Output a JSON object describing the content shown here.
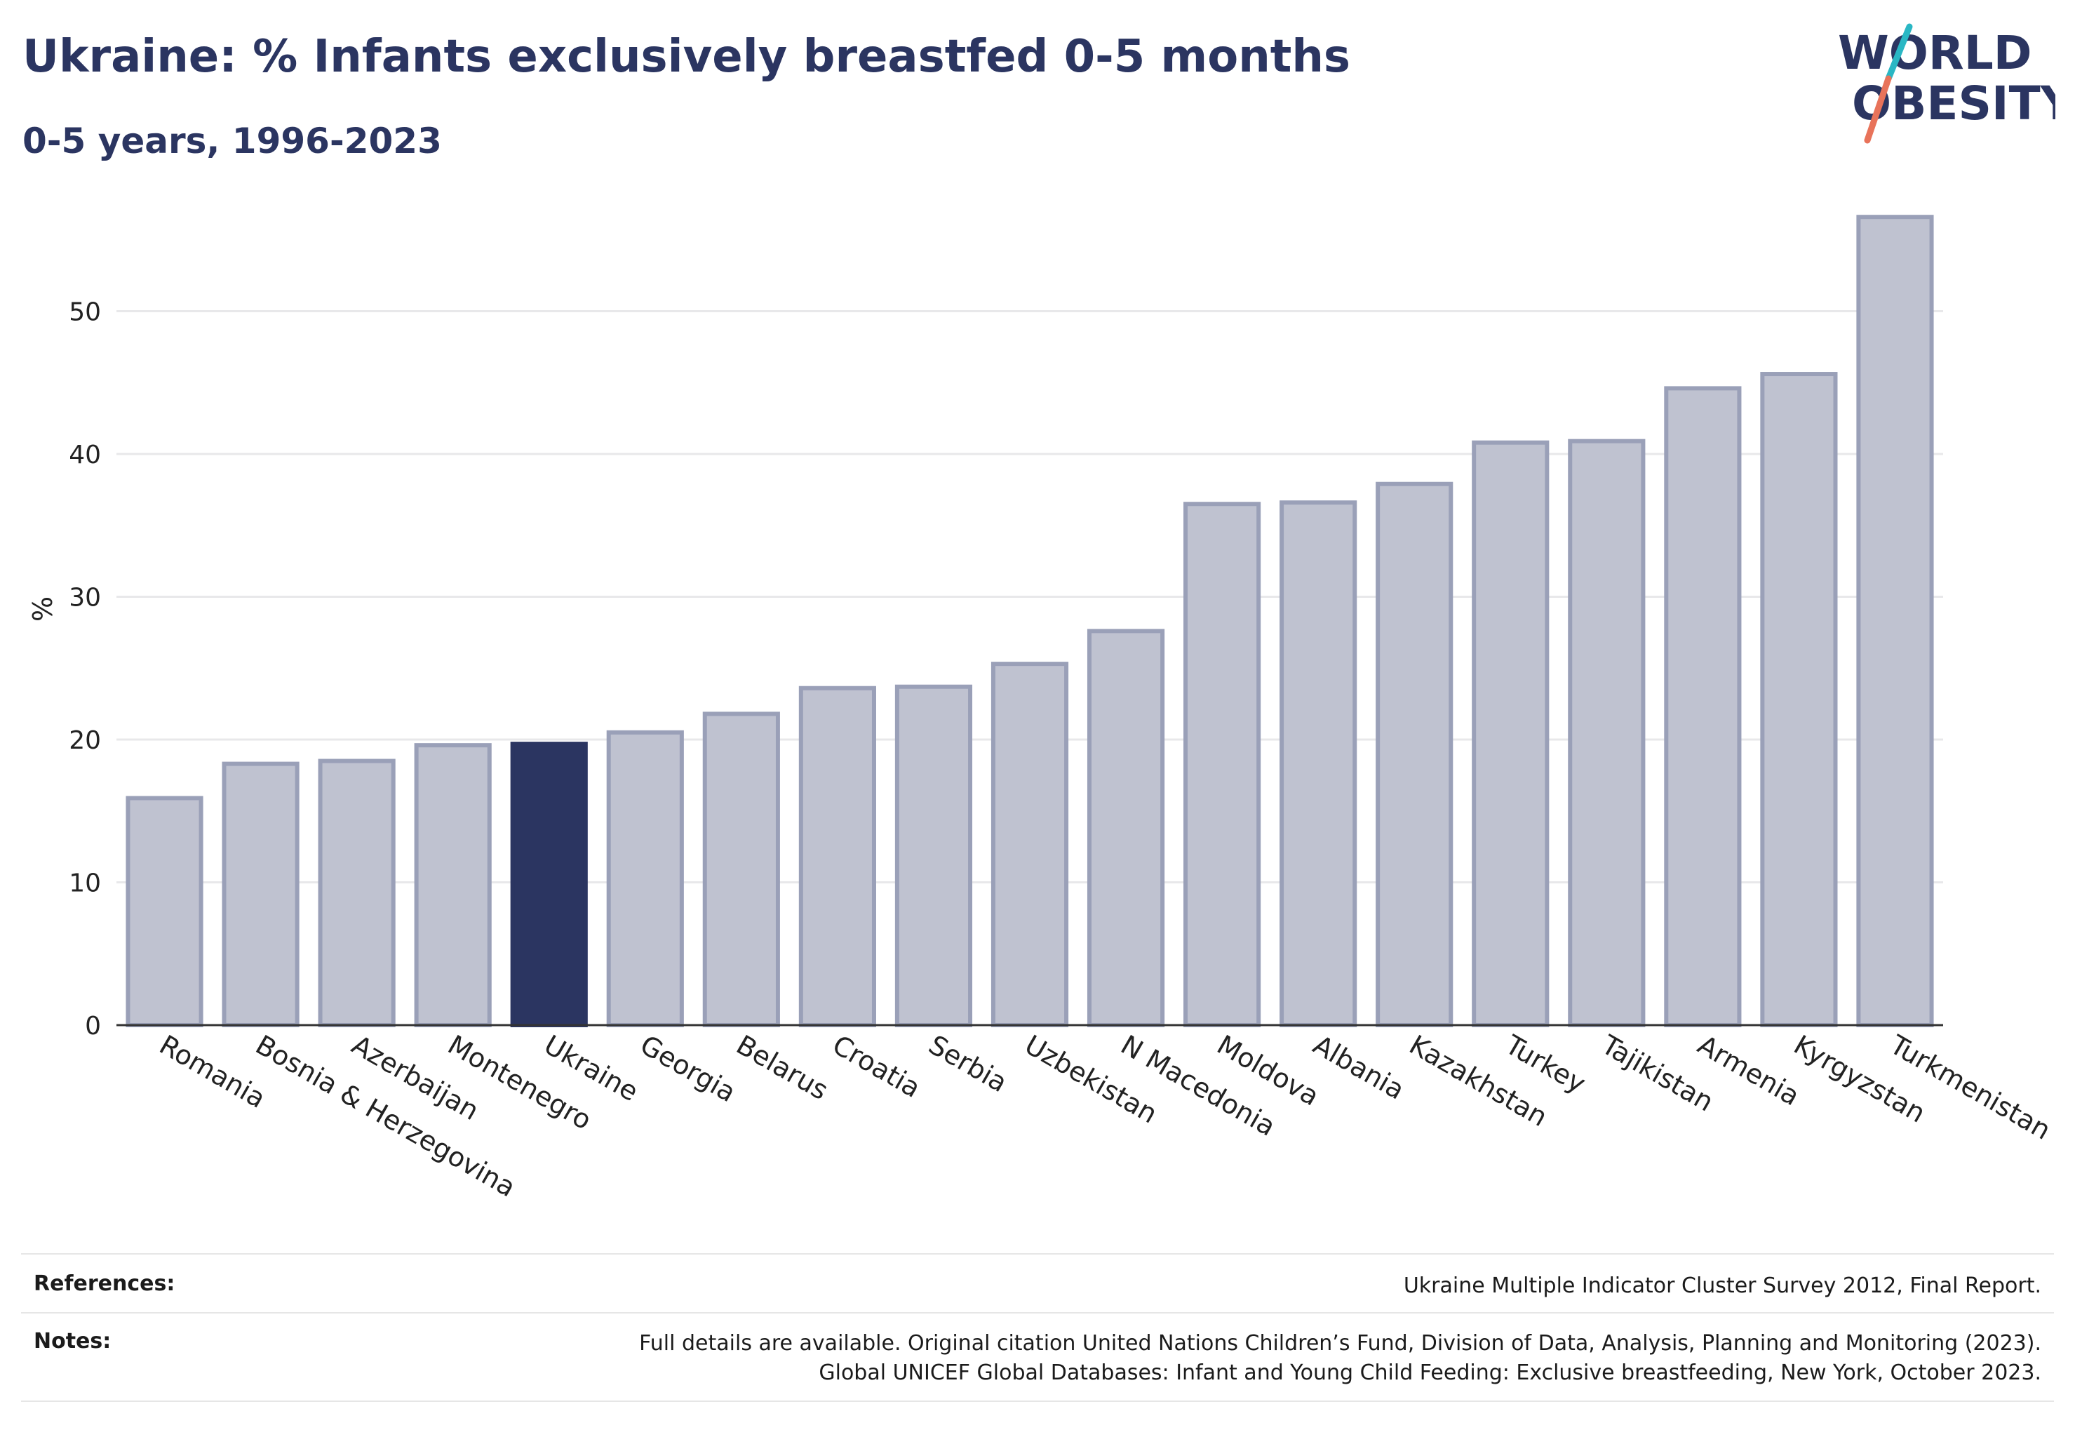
{
  "header": {
    "title": "Ukraine: % Infants exclusively breastfed 0-5 months",
    "subtitle": "0-5 years, 1996-2023"
  },
  "logo": {
    "line1": "WORLD",
    "line2": "OBESITY",
    "colors": {
      "text": "#2b3561",
      "slash_top": "#2ab7c4",
      "slash_bottom": "#e8735a"
    }
  },
  "chart_data": {
    "type": "bar",
    "title": "Ukraine: % Infants exclusively breastfed 0-5 months",
    "subtitle": "0-5 years, 1996-2023",
    "xlabel": "",
    "ylabel": "%",
    "ylim": [
      0,
      60
    ],
    "yticks": [
      0,
      10,
      20,
      30,
      40,
      50
    ],
    "grid": true,
    "highlight": "Ukraine",
    "colors": {
      "bar": "#bfc2d0",
      "bar_edge": "#9aa0b8",
      "highlight": "#2b3561"
    },
    "categories": [
      "Romania",
      "Bosnia & Herzegovina",
      "Azerbaijan",
      "Montenegro",
      "Ukraine",
      "Georgia",
      "Belarus",
      "Croatia",
      "Serbia",
      "Uzbekistan",
      "N Macedonia",
      "Moldova",
      "Albania",
      "Kazakhstan",
      "Turkey",
      "Tajikistan",
      "Armenia",
      "Kyrgyzstan",
      "Turkmenistan"
    ],
    "values": [
      15.9,
      18.3,
      18.5,
      19.6,
      19.7,
      20.5,
      21.8,
      23.6,
      23.7,
      25.3,
      27.6,
      36.5,
      36.6,
      37.9,
      40.8,
      40.9,
      44.6,
      45.6,
      56.6
    ]
  },
  "footer": {
    "references_label": "References:",
    "references_text": "Ukraine Multiple Indicator Cluster Survey 2012, Final Report.",
    "notes_label": "Notes:",
    "notes_line1": "Full details are available. Original citation United Nations Children’s Fund, Division of Data, Analysis, Planning and Monitoring (2023).",
    "notes_line2": "Global UNICEF Global Databases: Infant and Young Child Feeding: Exclusive breastfeeding, New York, October 2023."
  }
}
